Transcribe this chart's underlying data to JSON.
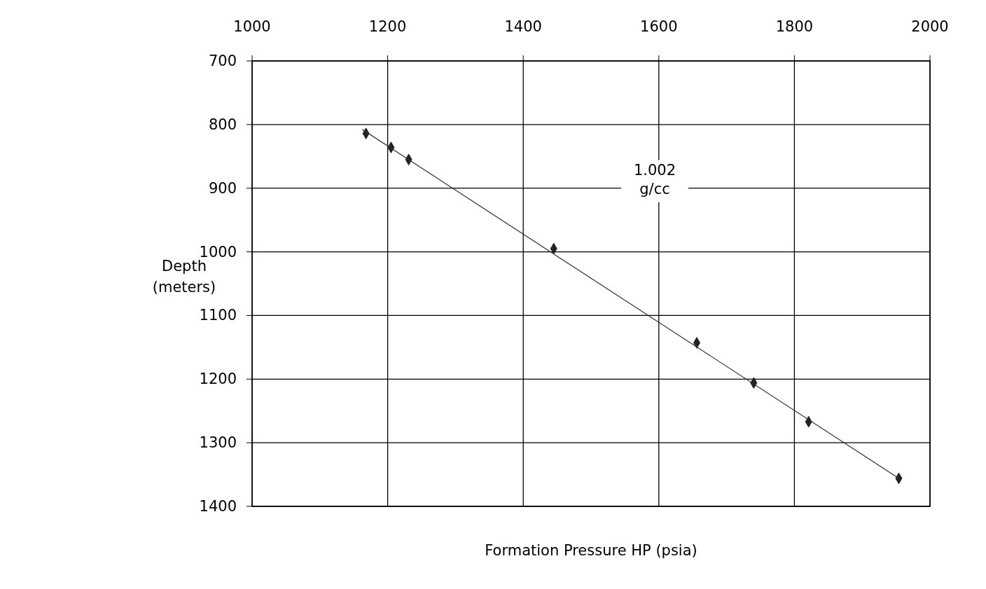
{
  "chart_data": {
    "type": "scatter",
    "xlabel": "Formation Pressure HP (psia)",
    "ylabel": "Depth (meters)",
    "xlim": [
      1000,
      2000
    ],
    "xticks": [
      1000,
      1200,
      1400,
      1600,
      1800,
      2000
    ],
    "ylim": [
      1400,
      700
    ],
    "yticks": [
      700,
      800,
      900,
      1000,
      1100,
      1200,
      1300,
      1400
    ],
    "grid": true,
    "marker": "diamond",
    "series": [
      {
        "color": "#222222",
        "x": [
          1168,
          1205,
          1231,
          1445,
          1656,
          1740,
          1821,
          1954
        ],
        "values": [
          814,
          836,
          855,
          995,
          1143,
          1206,
          1267,
          1356
        ]
      },
      {
        "type": "line",
        "color": "#333333",
        "marker": "none",
        "x": [
          1163,
          1954
        ],
        "values": [
          808,
          1356
        ]
      }
    ],
    "annotations": [
      "1.002 g/cc"
    ]
  }
}
